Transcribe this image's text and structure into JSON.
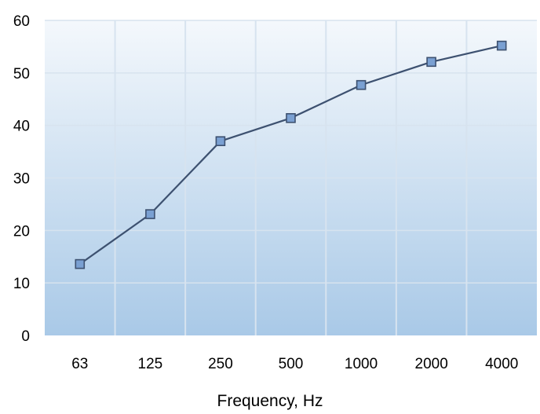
{
  "chart_data": {
    "type": "line",
    "title": "",
    "xlabel": "Frequency, Hz",
    "ylabel": "",
    "categories": [
      "63",
      "125",
      "250",
      "500",
      "1000",
      "2000",
      "4000"
    ],
    "series": [
      {
        "values": [
          13.6,
          23.1,
          37.0,
          41.4,
          47.7,
          52.1,
          55.2
        ]
      }
    ],
    "ylim": [
      0,
      60
    ],
    "yticks": [
      0,
      10,
      20,
      30,
      40,
      50,
      60
    ],
    "grid": true,
    "legend": "none",
    "colors": {
      "line": "#3d5170",
      "marker_fill": "#7aa0d2",
      "marker_stroke": "#3d5170",
      "plot_bg_top": "#f4f8fc",
      "plot_bg_bottom": "#a9c9e7",
      "gridline": "#d7e3ef"
    }
  }
}
